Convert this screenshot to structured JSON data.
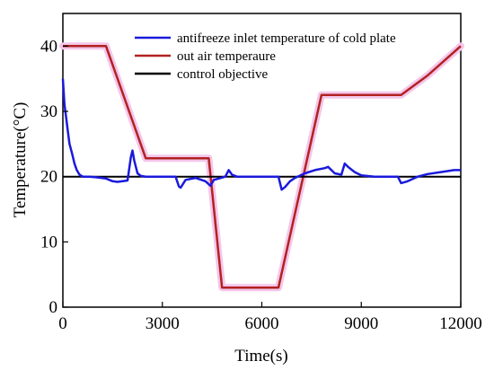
{
  "chart_data": {
    "type": "line",
    "xlabel": "Time(s)",
    "ylabel": "Temperature(°C)",
    "xlim": [
      0,
      12000
    ],
    "ylim": [
      0,
      45
    ],
    "xticks": [
      0,
      3000,
      6000,
      9000,
      12000
    ],
    "yticks": [
      0,
      10,
      20,
      30,
      40
    ],
    "xtick_labels": [
      "0",
      "3000",
      "6000",
      "9000",
      "12000"
    ],
    "ytick_labels": [
      "0",
      "10",
      "20",
      "30",
      "40"
    ],
    "grid": false,
    "legend_position": "top-right",
    "series": [
      {
        "name": "antifreeze inlet temperature of cold plate",
        "color": "#1a1adc",
        "x": [
          0,
          50,
          100,
          150,
          200,
          280,
          350,
          420,
          500,
          600,
          800,
          1000,
          1300,
          1500,
          1650,
          1800,
          1950,
          2050,
          2100,
          2150,
          2250,
          2350,
          2500,
          2800,
          3100,
          3400,
          3500,
          3550,
          3700,
          4000,
          4300,
          4450,
          4550,
          4700,
          4900,
          5000,
          5100,
          5250,
          5500,
          6000,
          6500,
          6600,
          6700,
          6850,
          7000,
          7300,
          7600,
          7900,
          8000,
          8200,
          8400,
          8500,
          8600,
          8800,
          9000,
          9400,
          9800,
          10100,
          10200,
          10400,
          10700,
          11000,
          11400,
          11800,
          12000
        ],
        "y": [
          35,
          31,
          29,
          27,
          25,
          23.5,
          22,
          21,
          20.3,
          20,
          20,
          19.9,
          19.7,
          19.3,
          19.2,
          19.3,
          19.4,
          23,
          24,
          22.5,
          20.5,
          20.1,
          20,
          20,
          20,
          20,
          18.5,
          18.3,
          19.5,
          19.8,
          19.3,
          18.6,
          19.5,
          19.7,
          20,
          21,
          20.3,
          20,
          20,
          20,
          20,
          18,
          18.4,
          19.3,
          19.8,
          20.5,
          21,
          21.3,
          21.5,
          20.5,
          20.3,
          22,
          21.5,
          20.7,
          20.2,
          20,
          20,
          20,
          19,
          19.3,
          20,
          20.4,
          20.7,
          21,
          21
        ]
      },
      {
        "name": "out air temperaure",
        "color": "#b22222",
        "x": [
          0,
          1300,
          2500,
          4400,
          4800,
          6500,
          7800,
          10200,
          11000,
          12000
        ],
        "y": [
          40,
          40,
          22.8,
          22.8,
          3,
          3,
          32.5,
          32.5,
          35.5,
          40
        ]
      },
      {
        "name": "control objective",
        "color": "#000000",
        "x": [
          0,
          12000
        ],
        "y": [
          20,
          20
        ]
      }
    ]
  }
}
